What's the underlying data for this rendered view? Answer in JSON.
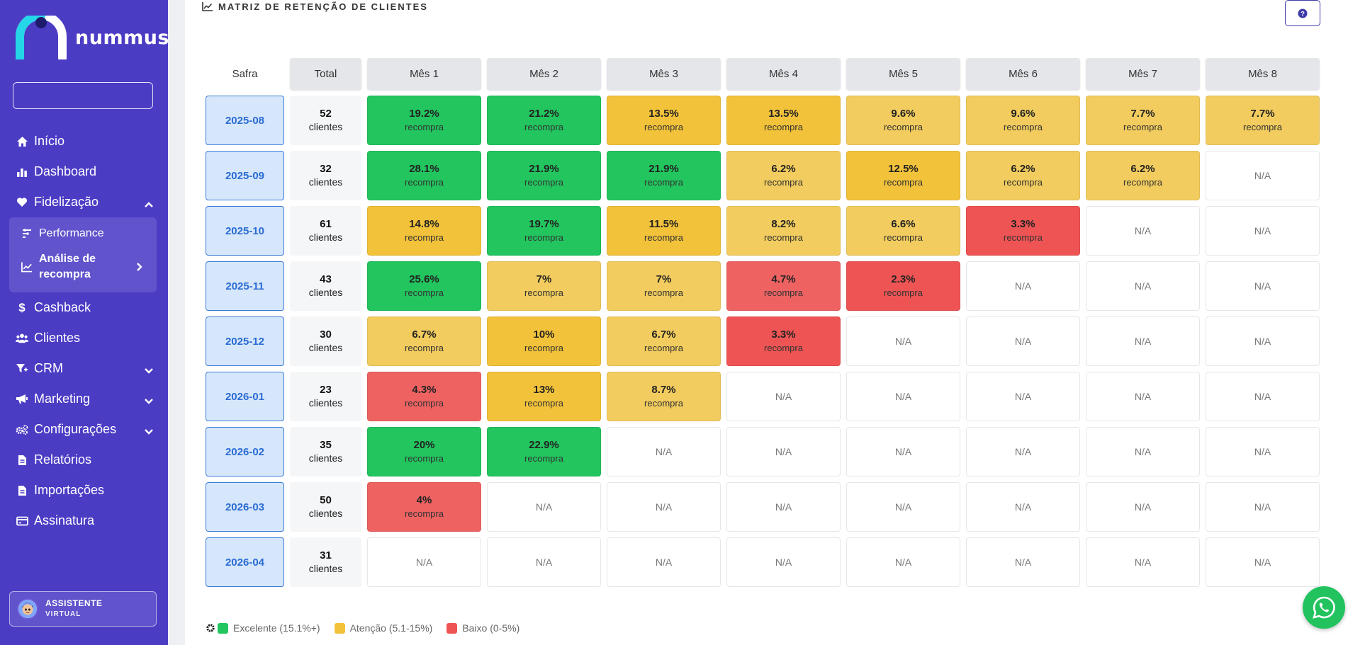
{
  "brand": {
    "name": "nummus"
  },
  "sidebar": {
    "search_placeholder": "",
    "items": [
      {
        "label": "Início",
        "icon": "home-icon"
      },
      {
        "label": "Dashboard",
        "icon": "bar-chart-icon"
      },
      {
        "label": "Fidelização",
        "icon": "heart-icon",
        "expanded": true
      },
      {
        "label": "Cashback",
        "icon": "dollar-icon"
      },
      {
        "label": "Clientes",
        "icon": "users-icon"
      },
      {
        "label": "CRM",
        "icon": "funnel-icon"
      },
      {
        "label": "Marketing",
        "icon": "megaphone-icon"
      },
      {
        "label": "Configurações",
        "icon": "gears-icon"
      },
      {
        "label": "Relatórios",
        "icon": "file-icon"
      },
      {
        "label": "Importações",
        "icon": "file-icon"
      },
      {
        "label": "Assinatura",
        "icon": "credit-card-icon"
      }
    ],
    "submenu": [
      {
        "label": "Performance",
        "icon": "sliders-icon"
      },
      {
        "label": "Análise de recompra",
        "icon": "line-chart-icon",
        "active": true
      }
    ],
    "assistant": {
      "line1": "ASSISTENTE",
      "line2": "VIRTUAL"
    }
  },
  "card": {
    "title": "MATRIZ DE RETENÇÃO DE CLIENTES",
    "help_label": "?"
  },
  "matrix": {
    "col_safra": "Safra",
    "col_total": "Total",
    "months": [
      "Mês 1",
      "Mês 2",
      "Mês 3",
      "Mês 4",
      "Mês 5",
      "Mês 6",
      "Mês 7",
      "Mês 8"
    ],
    "clients_label": "clientes",
    "rate_label": "recompra",
    "na_label": "N/A",
    "rows": [
      {
        "safra": "2025-08",
        "total": "52",
        "values": [
          "19.2%",
          "21.2%",
          "13.5%",
          "13.5%",
          "9.6%",
          "9.6%",
          "7.7%",
          "7.7%"
        ]
      },
      {
        "safra": "2025-09",
        "total": "32",
        "values": [
          "28.1%",
          "21.9%",
          "21.9%",
          "6.2%",
          "12.5%",
          "6.2%",
          "6.2%",
          null
        ]
      },
      {
        "safra": "2025-10",
        "total": "61",
        "values": [
          "14.8%",
          "19.7%",
          "11.5%",
          "8.2%",
          "6.6%",
          "3.3%",
          null,
          null
        ]
      },
      {
        "safra": "2025-11",
        "total": "43",
        "values": [
          "25.6%",
          "7%",
          "7%",
          "4.7%",
          "2.3%",
          null,
          null,
          null
        ]
      },
      {
        "safra": "2025-12",
        "total": "30",
        "values": [
          "6.7%",
          "10%",
          "6.7%",
          "3.3%",
          null,
          null,
          null,
          null
        ]
      },
      {
        "safra": "2026-01",
        "total": "23",
        "values": [
          "4.3%",
          "13%",
          "8.7%",
          null,
          null,
          null,
          null,
          null
        ]
      },
      {
        "safra": "2026-02",
        "total": "35",
        "values": [
          "20%",
          "22.9%",
          null,
          null,
          null,
          null,
          null,
          null
        ]
      },
      {
        "safra": "2026-03",
        "total": "50",
        "values": [
          "4%",
          null,
          null,
          null,
          null,
          null,
          null,
          null
        ]
      },
      {
        "safra": "2026-04",
        "total": "31",
        "values": [
          null,
          null,
          null,
          null,
          null,
          null,
          null,
          null
        ]
      }
    ]
  },
  "legend": [
    {
      "label": "Excelente (15.1%+)",
      "color": "#22c55e"
    },
    {
      "label": "Atenção (5.1-15%)",
      "color": "#f2c23a"
    },
    {
      "label": "Baixo (0-5%)",
      "color": "#ef5454"
    }
  ],
  "colors": {
    "sidebar_bg": "#4b3cc4",
    "excellent": "#22c55e",
    "attention_strong": "#f2c23a",
    "attention_light": "#f2cc5e",
    "low_strong": "#ef5454",
    "low_light": "#ee6262",
    "whatsapp": "#22c35e"
  }
}
